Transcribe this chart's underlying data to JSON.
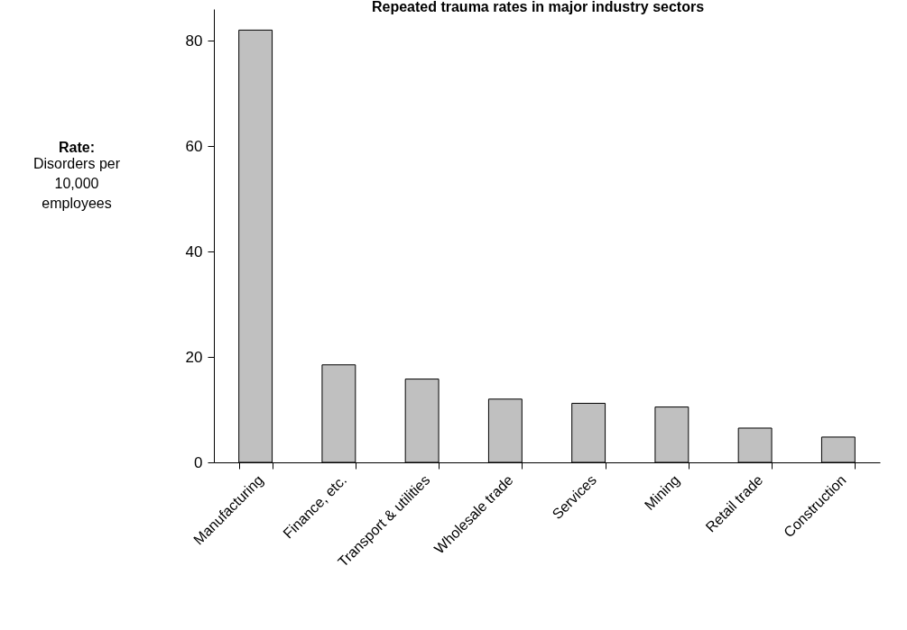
{
  "chart_data": {
    "type": "bar",
    "title": "Repeated trauma rates in major industry sectors",
    "ylabel": "Rate: Disorders per 10,000 employees",
    "categories": [
      "Manufacturing",
      "Finance, etc.",
      "Transport & utilities",
      "Wholesale trade",
      "Services",
      "Mining",
      "Retail trade",
      "Construction"
    ],
    "values": [
      82,
      18.5,
      15.8,
      12,
      11.2,
      10.5,
      6.5,
      4.8
    ],
    "color": "#c0c0c0",
    "ylim": [
      0,
      86
    ],
    "yticks": [
      0,
      20,
      40,
      60,
      80
    ],
    "grid": false
  }
}
